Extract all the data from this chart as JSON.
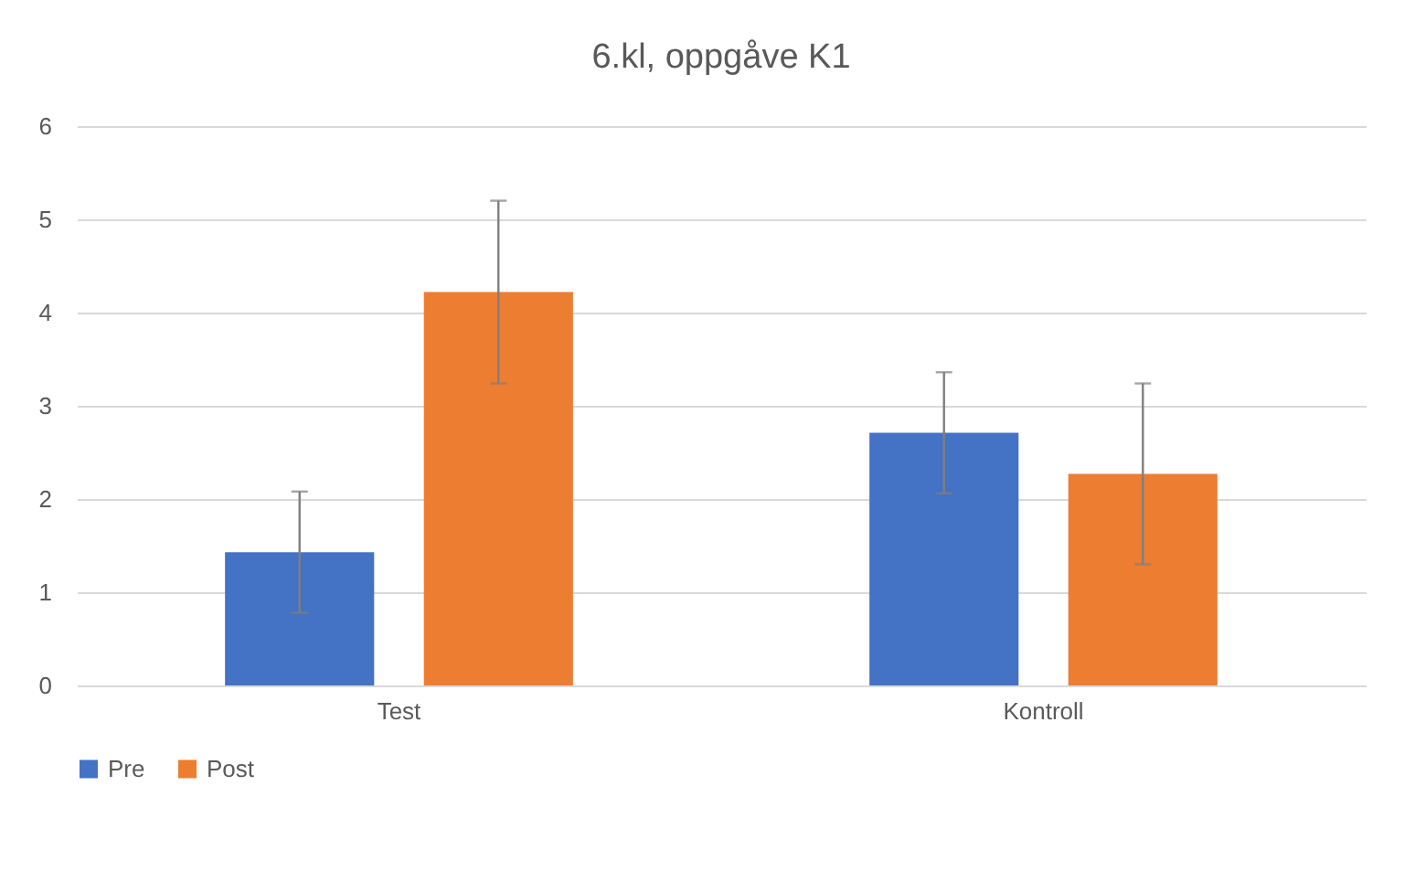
{
  "chart_data": {
    "type": "bar",
    "title": "6.kl, oppgåve K1",
    "categories": [
      "Test",
      "Kontroll"
    ],
    "series": [
      {
        "name": "Pre",
        "color": "#4472c4",
        "values": [
          1.43,
          2.71
        ],
        "errors": [
          0.65,
          0.65
        ]
      },
      {
        "name": "Post",
        "color": "#ed7d31",
        "values": [
          4.22,
          2.27
        ],
        "errors": [
          0.98,
          0.97
        ]
      }
    ],
    "ylim": [
      0,
      6
    ],
    "yticks": [
      0,
      1,
      2,
      3,
      4,
      5,
      6
    ],
    "grid": "y",
    "legend": "bottom"
  }
}
